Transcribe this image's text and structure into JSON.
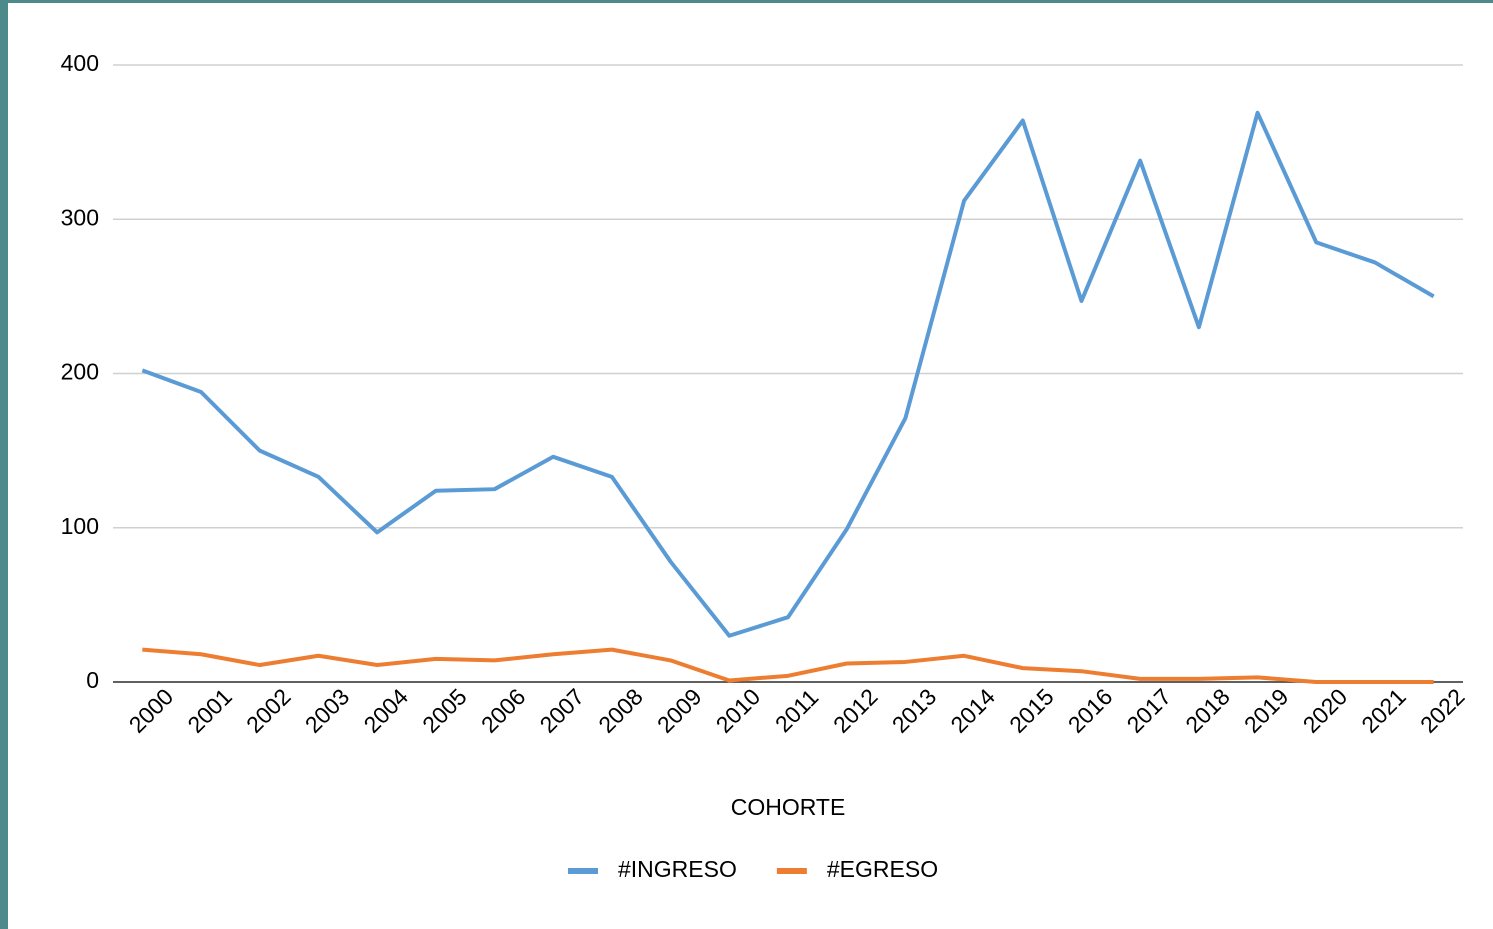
{
  "chart_data": {
    "type": "line",
    "x_label": "COHORTE",
    "categories": [
      "2000",
      "2001",
      "2002",
      "2003",
      "2004",
      "2005",
      "2006",
      "2007",
      "2008",
      "2009",
      "2010",
      "2011",
      "2012",
      "2013",
      "2014",
      "2015",
      "2016",
      "2017",
      "2018",
      "2019",
      "2020",
      "2021",
      "2022"
    ],
    "series": [
      {
        "name": "#INGRESO",
        "color": "#5b9bd5",
        "values": [
          202,
          188,
          150,
          133,
          97,
          124,
          125,
          146,
          133,
          78,
          30,
          42,
          99,
          171,
          312,
          364,
          247,
          338,
          230,
          369,
          285,
          272,
          250
        ]
      },
      {
        "name": "#EGRESO",
        "color": "#ed7d31",
        "values": [
          21,
          18,
          11,
          17,
          11,
          15,
          14,
          18,
          21,
          14,
          1,
          4,
          12,
          13,
          17,
          9,
          7,
          2,
          2,
          3,
          0,
          0,
          0
        ]
      }
    ],
    "ylim": [
      0,
      400
    ],
    "yticks": [
      0,
      100,
      200,
      300,
      400
    ],
    "grid": true,
    "legend": "bottom"
  }
}
